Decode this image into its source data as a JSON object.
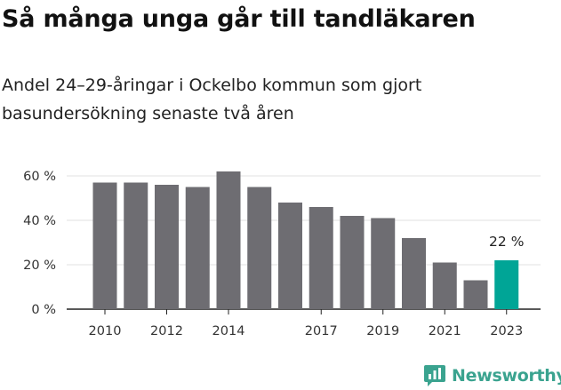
{
  "title": "Så många unga går till tandläkaren",
  "subtitle": "Andel 24–29-åringar i Ockelbo kommun som gjort basundersökning senaste två åren",
  "brand": {
    "name": "Newsworthy",
    "icon": "newsworthy-logo-icon"
  },
  "colors": {
    "bar": "#6e6d72",
    "highlight": "#00a596",
    "grid": "#e0e0e0",
    "axis": "#222222"
  },
  "chart_data": {
    "type": "bar",
    "title": "Så många unga går till tandläkaren",
    "subtitle": "Andel 24–29-åringar i Ockelbo kommun som gjort basundersökning senaste två åren",
    "categories": [
      "2010",
      "2011",
      "2012",
      "2013",
      "2014",
      "2015",
      "2016",
      "2017",
      "2018",
      "2019",
      "2020",
      "2021",
      "2022",
      "2023"
    ],
    "values": [
      57,
      57,
      56,
      55,
      62,
      55,
      48,
      46,
      42,
      41,
      32,
      21,
      13,
      22
    ],
    "x_tick_labels": [
      "2010",
      "2012",
      "2014",
      "2017",
      "2019",
      "2021",
      "2023"
    ],
    "y_ticks": [
      0,
      20,
      40,
      60
    ],
    "y_tick_labels": [
      "0 %",
      "20 %",
      "40 %",
      "60 %"
    ],
    "ylim": [
      0,
      65
    ],
    "highlight_index": 13,
    "data_labels": [
      {
        "index": 13,
        "text": "22 %"
      }
    ],
    "grid": true,
    "xlabel": "",
    "ylabel": ""
  }
}
